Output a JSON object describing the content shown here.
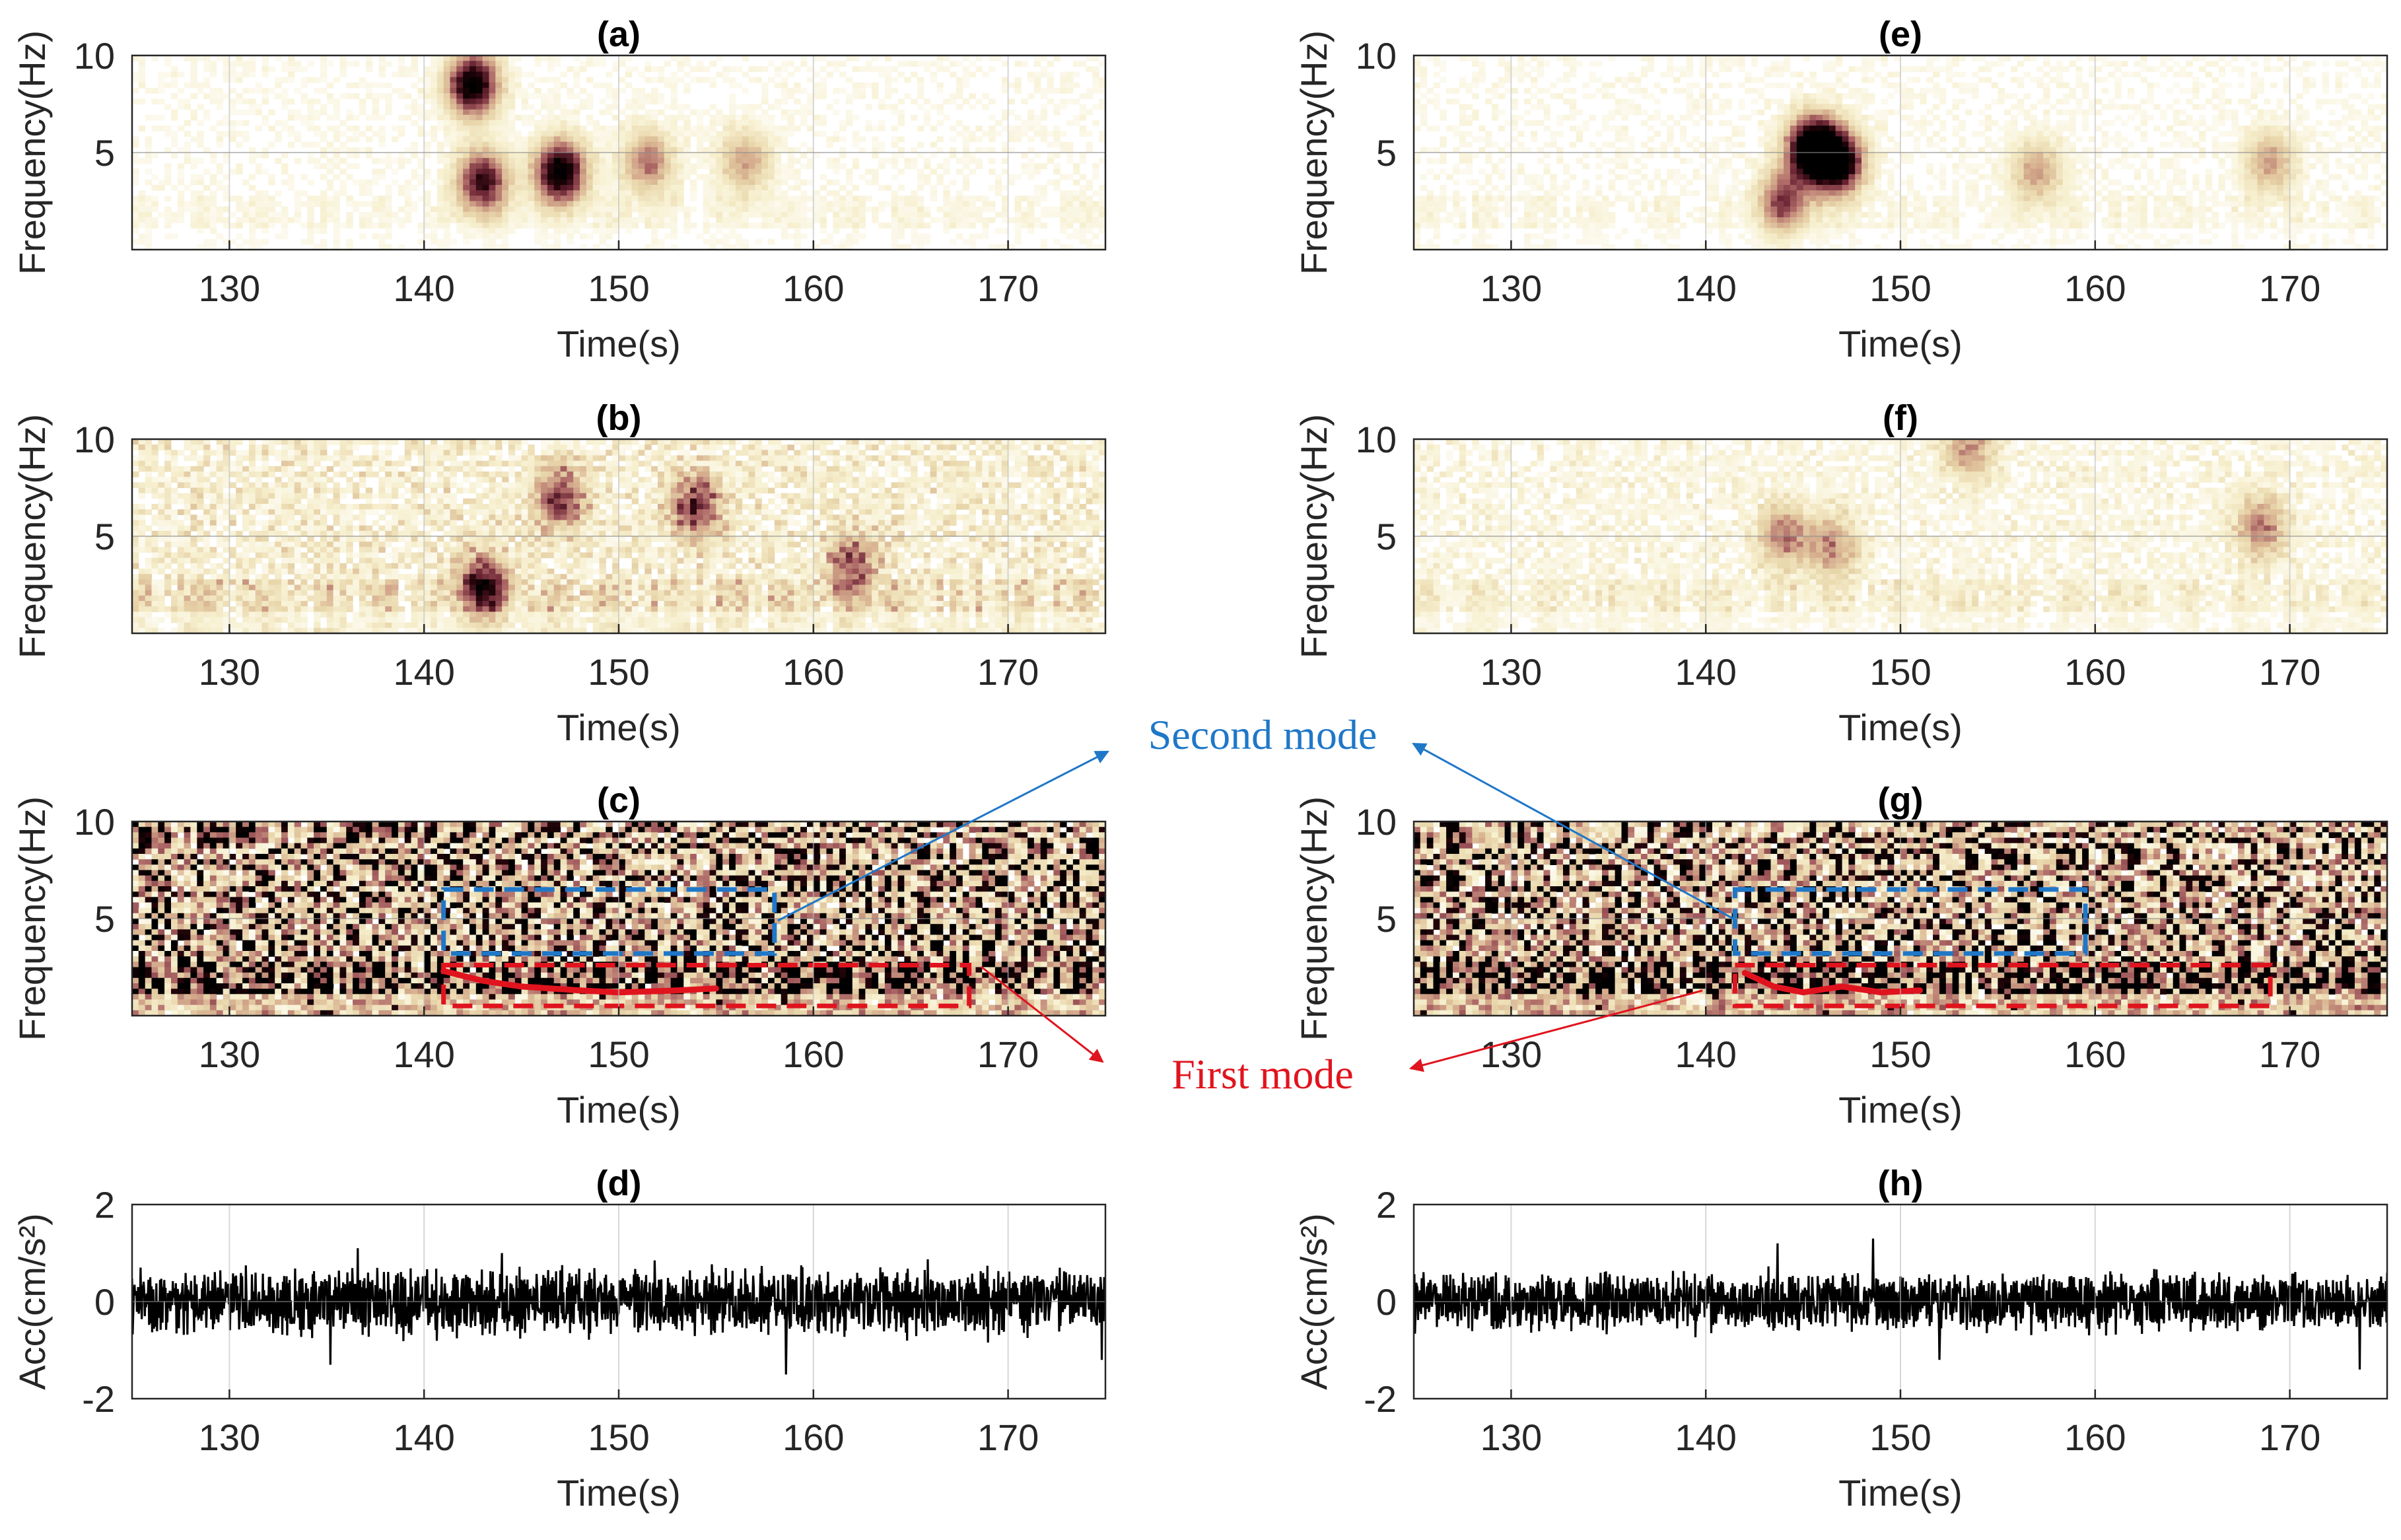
{
  "figure": {
    "annotations": {
      "second_mode": {
        "label": "Second mode",
        "color": "#1f77c8"
      },
      "first_mode": {
        "label": "First mode",
        "color": "#e0141e"
      }
    }
  },
  "chart_data": [
    {
      "id": "a",
      "title": "(a)",
      "type": "heatmap",
      "intensity": "low",
      "hotspots": [
        [
          142.5,
          8.5,
          1.0
        ],
        [
          143.0,
          3.5,
          0.8
        ],
        [
          147.0,
          4.0,
          1.0
        ],
        [
          151.5,
          4.5,
          0.5
        ],
        [
          156.5,
          4.5,
          0.4
        ]
      ],
      "xlabel": "Time(s)",
      "ylabel": "Frequency(Hz)",
      "xlim": [
        125,
        175
      ],
      "ylim": [
        0,
        10
      ],
      "xticks": [
        130,
        140,
        150,
        160,
        170
      ],
      "yticks": [
        5,
        10
      ]
    },
    {
      "id": "b",
      "title": "(b)",
      "type": "heatmap",
      "intensity": "medium",
      "hotspots": [
        [
          143,
          2.5,
          0.7
        ],
        [
          147,
          7,
          0.6
        ],
        [
          154,
          6.5,
          0.6
        ],
        [
          162,
          3.5,
          0.5
        ]
      ],
      "xlabel": "Time(s)",
      "ylabel": "Frequency(Hz)",
      "xlim": [
        125,
        175
      ],
      "ylim": [
        0,
        10
      ],
      "xticks": [
        130,
        140,
        150,
        160,
        170
      ],
      "yticks": [
        5,
        10
      ]
    },
    {
      "id": "c",
      "title": "(c)",
      "type": "heatmap",
      "intensity": "high",
      "xlabel": "Time(s)",
      "ylabel": "Frequency(Hz)",
      "xlim": [
        125,
        175
      ],
      "ylim": [
        0,
        10
      ],
      "xticks": [
        130,
        140,
        150,
        160,
        170
      ],
      "yticks": [
        5,
        10
      ],
      "boxes": [
        {
          "mode": "second",
          "t0": 141,
          "t1": 158,
          "f0": 3.2,
          "f1": 6.5
        },
        {
          "mode": "first",
          "t0": 141,
          "t1": 168,
          "f0": 0.5,
          "f1": 2.6
        }
      ],
      "ridge": {
        "t": [
          141,
          143,
          145,
          148,
          150,
          153,
          155
        ],
        "f": [
          2.3,
          1.8,
          1.5,
          1.3,
          1.2,
          1.3,
          1.4
        ]
      }
    },
    {
      "id": "d",
      "title": "(d)",
      "type": "line",
      "amplitude": 0.45,
      "peaks": [
        [
          135.2,
          -1.3
        ],
        [
          136.6,
          1.1
        ],
        [
          144,
          1.0
        ],
        [
          158.6,
          -1.5
        ],
        [
          174.8,
          -1.2
        ]
      ],
      "xlabel": "Time(s)",
      "ylabel": "Acc(cm/s²)",
      "xlim": [
        125,
        175
      ],
      "ylim": [
        -2,
        2
      ],
      "xticks": [
        130,
        140,
        150,
        160,
        170
      ],
      "yticks": [
        -2,
        0,
        2
      ]
    },
    {
      "id": "e",
      "title": "(e)",
      "type": "heatmap",
      "intensity": "low",
      "hotspots": [
        [
          145.5,
          5.2,
          1.2
        ],
        [
          146.8,
          4.5,
          1.0
        ],
        [
          144,
          2.5,
          0.6
        ],
        [
          157,
          4,
          0.4
        ],
        [
          169,
          4.5,
          0.4
        ]
      ],
      "xlabel": "Time(s)",
      "ylabel": "Frequency(Hz)",
      "xlim": [
        125,
        175
      ],
      "ylim": [
        0,
        10
      ],
      "xticks": [
        130,
        140,
        150,
        160,
        170
      ],
      "yticks": [
        5,
        10
      ]
    },
    {
      "id": "f",
      "title": "(f)",
      "type": "heatmap",
      "intensity": "lowmedium",
      "hotspots": [
        [
          144,
          5,
          0.45
        ],
        [
          146.5,
          4.5,
          0.4
        ],
        [
          168.5,
          5.5,
          0.45
        ],
        [
          153.5,
          9.5,
          0.4
        ]
      ],
      "xlabel": "Time(s)",
      "ylabel": "Frequency(Hz)",
      "xlim": [
        125,
        175
      ],
      "ylim": [
        0,
        10
      ],
      "xticks": [
        130,
        140,
        150,
        160,
        170
      ],
      "yticks": [
        5,
        10
      ]
    },
    {
      "id": "g",
      "title": "(g)",
      "type": "heatmap",
      "intensity": "high",
      "xlabel": "Time(s)",
      "ylabel": "Frequency(Hz)",
      "xlim": [
        125,
        175
      ],
      "ylim": [
        0,
        10
      ],
      "xticks": [
        130,
        140,
        150,
        160,
        170
      ],
      "yticks": [
        5,
        10
      ],
      "boxes": [
        {
          "mode": "second",
          "t0": 141.5,
          "t1": 159.5,
          "f0": 3.2,
          "f1": 6.5
        },
        {
          "mode": "first",
          "t0": 141.5,
          "t1": 169,
          "f0": 0.5,
          "f1": 2.6
        }
      ],
      "ridge": {
        "t": [
          142,
          143.5,
          145,
          147,
          149,
          151
        ],
        "f": [
          2.2,
          1.5,
          1.2,
          1.5,
          1.2,
          1.3
        ]
      }
    },
    {
      "id": "h",
      "title": "(h)",
      "type": "line",
      "amplitude": 0.38,
      "peaks": [
        [
          143.7,
          1.2
        ],
        [
          148.6,
          1.3
        ],
        [
          152,
          -1.2
        ],
        [
          173.6,
          -1.4
        ]
      ],
      "xlabel": "Time(s)",
      "ylabel": "Acc(cm/s²)",
      "xlim": [
        125,
        175
      ],
      "ylim": [
        -2,
        2
      ],
      "xticks": [
        130,
        140,
        150,
        160,
        170
      ],
      "yticks": [
        -2,
        0,
        2
      ]
    }
  ]
}
